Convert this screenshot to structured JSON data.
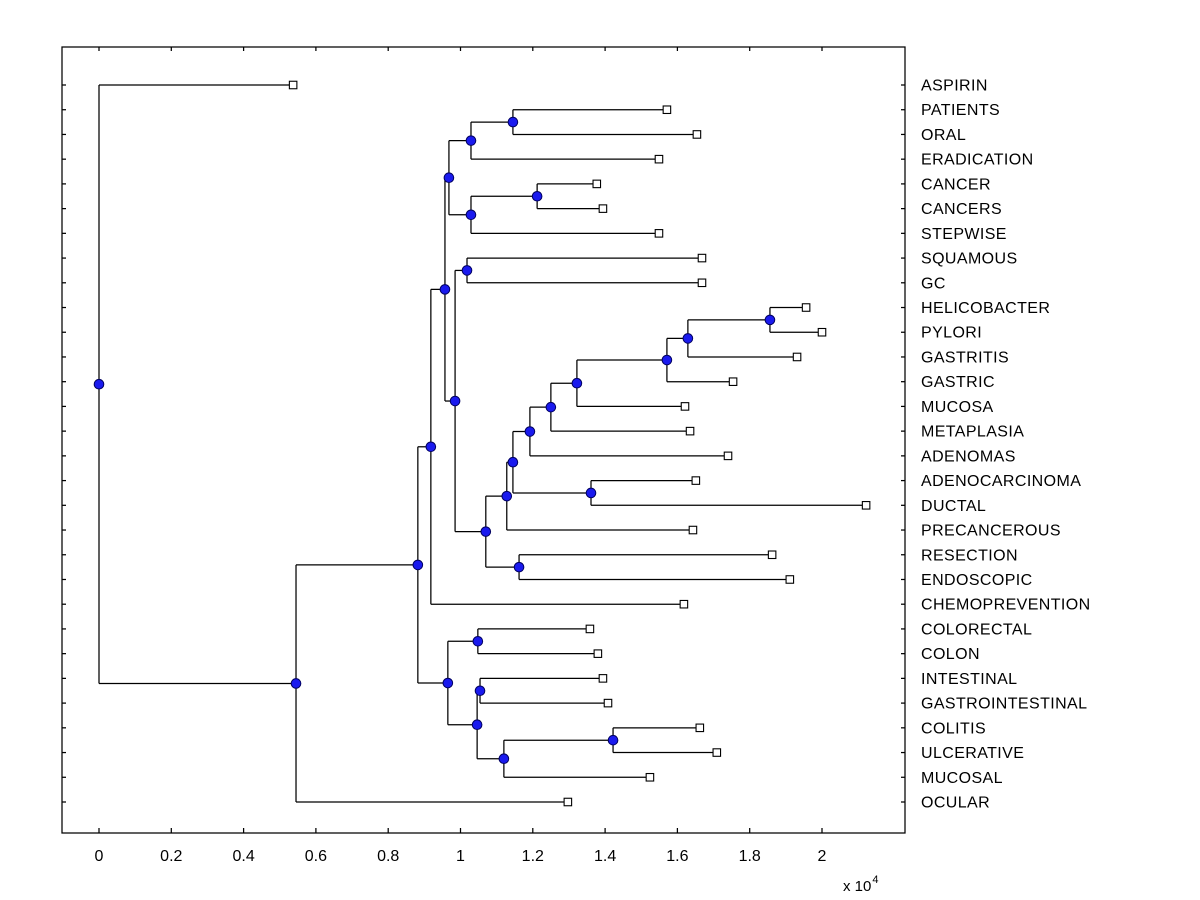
{
  "figure": {
    "background": "#ffffff"
  },
  "style": {
    "branch_color": "#000000",
    "axis_color": "#000000",
    "text_color": "#000000",
    "branch_node_fill": "#1a1aee",
    "branch_node_edge": "#000060",
    "leaf_marker_fill": "#ffffff",
    "leaf_marker_edge": "#000000"
  },
  "chart_data": {
    "type": "dendrogram",
    "subtype": "phylogenetic-tree",
    "orientation": "root-left-leaves-right",
    "title": "",
    "xlabel": "",
    "ylabel": "",
    "grid": false,
    "legend": null,
    "x_axis": {
      "tick_labels": [
        "0",
        "0.2",
        "0.4",
        "0.6",
        "0.8",
        "1",
        "1.2",
        "1.4",
        "1.6",
        "1.8",
        "2"
      ],
      "tick_values": [
        0,
        2000,
        4000,
        6000,
        8000,
        10000,
        12000,
        14000,
        16000,
        18000,
        20000
      ],
      "multiplier": {
        "prefix": "x 10",
        "exponent": "4"
      },
      "range": [
        -1030,
        22300
      ],
      "ticks_mirrored_on_top": true
    },
    "y_axis": {
      "rows": 30,
      "tick_marks_left": true,
      "tick_marks_right": true,
      "labels_side": "right"
    },
    "leaf_labels": [
      "ASPIRIN",
      "PATIENTS",
      "ORAL",
      "ERADICATION",
      "CANCER",
      "CANCERS",
      "STEPWISE",
      "SQUAMOUS",
      "GC",
      "HELICOBACTER",
      "PYLORI",
      "GASTRITIS",
      "GASTRIC",
      "MUCOSA",
      "METAPLASIA",
      "ADENOMAS",
      "ADENOCARCINOMA",
      "DUCTAL",
      "PRECANCEROUS",
      "RESECTION",
      "ENDOSCOPIC",
      "CHEMOPREVENTION",
      "COLORECTAL",
      "COLON",
      "INTESTINAL",
      "GASTROINTESTINAL",
      "COLITIS",
      "ULCERATIVE",
      "MUCOSAL",
      "OCULAR"
    ],
    "tree": {
      "d": 0,
      "c": [
        {
          "label": "ASPIRIN",
          "d": 5370
        },
        {
          "d": 5450,
          "c": [
            {
              "d": 8820,
              "c": [
                {
                  "d": 9180,
                  "c": [
                    {
                      "d": 9570,
                      "c": [
                        {
                          "d": 9680,
                          "c": [
                            {
                              "d": 10290,
                              "c": [
                                {
                                  "d": 11450,
                                  "c": [
                                    {
                                      "label": "PATIENTS",
                                      "d": 15710
                                    },
                                    {
                                      "label": "ORAL",
                                      "d": 16540
                                    }
                                  ]
                                },
                                {
                                  "label": "ERADICATION",
                                  "d": 15490
                                }
                              ]
                            },
                            {
                              "d": 10290,
                              "c": [
                                {
                                  "d": 12120,
                                  "c": [
                                    {
                                      "label": "CANCER",
                                      "d": 13770
                                    },
                                    {
                                      "label": "CANCERS",
                                      "d": 13940
                                    }
                                  ]
                                },
                                {
                                  "label": "STEPWISE",
                                  "d": 15490
                                }
                              ]
                            }
                          ]
                        },
                        {
                          "d": 9850,
                          "c": [
                            {
                              "d": 10180,
                              "c": [
                                {
                                  "label": "SQUAMOUS",
                                  "d": 16680
                                },
                                {
                                  "label": "GC",
                                  "d": 16680
                                }
                              ]
                            },
                            {
                              "d": 10700,
                              "c": [
                                {
                                  "d": 11280,
                                  "c": [
                                    {
                                      "d": 11450,
                                      "c": [
                                        {
                                          "d": 11920,
                                          "c": [
                                            {
                                              "d": 12500,
                                              "c": [
                                                {
                                                  "d": 13220,
                                                  "c": [
                                                    {
                                                      "d": 15710,
                                                      "c": [
                                                        {
                                                          "d": 16290,
                                                          "c": [
                                                            {
                                                              "d": 18560,
                                                              "c": [
                                                                {
                                                                  "label": "HELICOBACTER",
                                                                  "d": 19560
                                                                },
                                                                {
                                                                  "label": "PYLORI",
                                                                  "d": 20000
                                                                }
                                                              ]
                                                            },
                                                            {
                                                              "label": "GASTRITIS",
                                                              "d": 19310
                                                            }
                                                          ]
                                                        },
                                                        {
                                                          "label": "GASTRIC",
                                                          "d": 17540
                                                        }
                                                      ]
                                                    },
                                                    {
                                                      "label": "MUCOSA",
                                                      "d": 16210
                                                    }
                                                  ]
                                                },
                                                {
                                                  "label": "METAPLASIA",
                                                  "d": 16350
                                                }
                                              ]
                                            },
                                            {
                                              "label": "ADENOMAS",
                                              "d": 17400
                                            }
                                          ]
                                        },
                                        {
                                          "d": 13610,
                                          "c": [
                                            {
                                              "label": "ADENOCARCINOMA",
                                              "d": 16510
                                            },
                                            {
                                              "label": "DUCTAL",
                                              "d": 21220
                                            }
                                          ]
                                        }
                                      ]
                                    },
                                    {
                                      "label": "PRECANCEROUS",
                                      "d": 16430
                                    }
                                  ]
                                },
                                {
                                  "d": 11620,
                                  "c": [
                                    {
                                      "label": "RESECTION",
                                      "d": 18620
                                    },
                                    {
                                      "label": "ENDOSCOPIC",
                                      "d": 19110
                                    }
                                  ]
                                }
                              ]
                            }
                          ]
                        }
                      ]
                    },
                    {
                      "label": "CHEMOPREVENTION",
                      "d": 16180
                    }
                  ]
                },
                {
                  "d": 9650,
                  "c": [
                    {
                      "d": 10480,
                      "c": [
                        {
                          "label": "COLORECTAL",
                          "d": 13580
                        },
                        {
                          "label": "COLON",
                          "d": 13800
                        }
                      ]
                    },
                    {
                      "d": 10460,
                      "c": [
                        {
                          "d": 10540,
                          "c": [
                            {
                              "label": "INTESTINAL",
                              "d": 13940
                            },
                            {
                              "label": "GASTROINTESTINAL",
                              "d": 14080
                            }
                          ]
                        },
                        {
                          "d": 11200,
                          "c": [
                            {
                              "d": 14220,
                              "c": [
                                {
                                  "label": "COLITIS",
                                  "d": 16620
                                },
                                {
                                  "label": "ULCERATIVE",
                                  "d": 17090
                                }
                              ]
                            },
                            {
                              "label": "MUCOSAL",
                              "d": 15240
                            }
                          ]
                        }
                      ]
                    }
                  ]
                }
              ]
            },
            {
              "label": "OCULAR",
              "d": 12970
            }
          ]
        }
      ]
    }
  }
}
